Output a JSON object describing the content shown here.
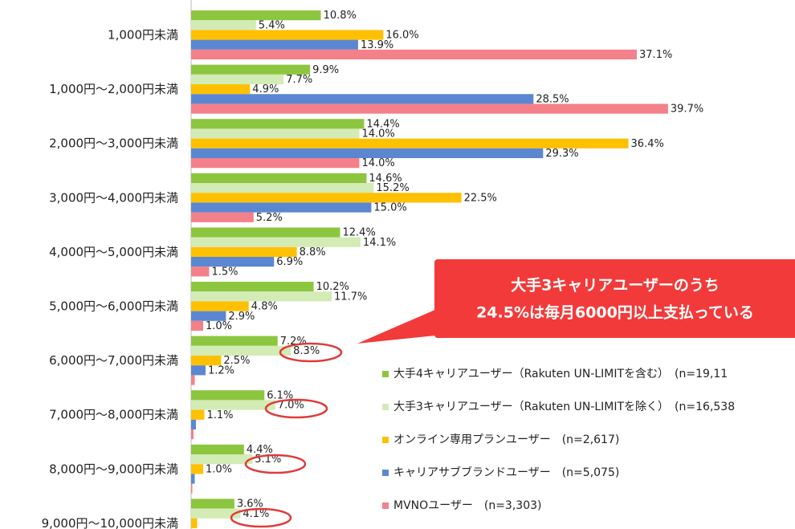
{
  "chart_data": {
    "type": "bar",
    "orientation": "horizontal",
    "categories": [
      "1,000円未満",
      "1,000円～2,000円未満",
      "2,000円～3,000円未満",
      "3,000円～4,000円未満",
      "4,000円～5,000円未満",
      "5,000円～6,000円未満",
      "6,000円～7,000円未満",
      "7,000円～8,000円未満",
      "8,000円～9,000円未満",
      "9,000円～10,000円未満"
    ],
    "series": [
      {
        "name": "大手4キャリアユーザー（Rakuten UN-LIMITを含む）　(n=19,11",
        "color": "#8cc63e",
        "values": [
          10.8,
          9.9,
          14.4,
          14.6,
          12.4,
          10.2,
          7.2,
          6.1,
          4.4,
          3.6
        ],
        "value_labels": [
          "10.8%",
          "9.9%",
          "14.4%",
          "14.6%",
          "12.4%",
          "10.2%",
          "7.2%",
          "6.1%",
          "4.4%",
          "3.6%"
        ]
      },
      {
        "name": "大手3キャリアユーザー（Rakuten UN-LIMITを除く）　(n=16,538",
        "color": "#d3ebb5",
        "values": [
          5.4,
          7.7,
          14.0,
          15.2,
          14.1,
          11.7,
          8.3,
          7.0,
          5.1,
          4.1
        ],
        "value_labels": [
          "5.4%",
          "7.7%",
          "14.0%",
          "15.2%",
          "14.1%",
          "11.7%",
          "8.3%",
          "7.0%",
          "5.1%",
          "4.1%"
        ]
      },
      {
        "name": "オンライン専用プランユーザー　(n=2,617)",
        "color": "#ffc000",
        "values": [
          16.0,
          4.9,
          36.4,
          22.5,
          8.8,
          4.8,
          2.5,
          1.1,
          1.0,
          0.5
        ],
        "value_labels": [
          "16.0%",
          "4.9%",
          "36.4%",
          "22.5%",
          "8.8%",
          "4.8%",
          "2.5%",
          "1.1%",
          "1.0%",
          null
        ]
      },
      {
        "name": "キャリアサブブランドユーザー　(n=5,075)",
        "color": "#5b87d2",
        "values": [
          13.9,
          28.5,
          29.3,
          15.0,
          6.9,
          2.9,
          1.2,
          0.4,
          0.3,
          null
        ],
        "value_labels": [
          "13.9%",
          "28.5%",
          "29.3%",
          "15.0%",
          "6.9%",
          "2.9%",
          "1.2%",
          null,
          null,
          null
        ]
      },
      {
        "name": "MVNOユーザー　(n=3,303)",
        "color": "#f4808a",
        "values": [
          37.1,
          39.7,
          14.0,
          5.2,
          1.5,
          1.0,
          0.3,
          0.2,
          0.1,
          null
        ],
        "value_labels": [
          "37.1%",
          "39.7%",
          "14.0%",
          "5.2%",
          "1.5%",
          "1.0%",
          null,
          null,
          null,
          null
        ]
      }
    ],
    "annotation": [
      "大手3キャリアユーザーのうち",
      "24.5%は毎月6000円以上支払っている"
    ]
  }
}
